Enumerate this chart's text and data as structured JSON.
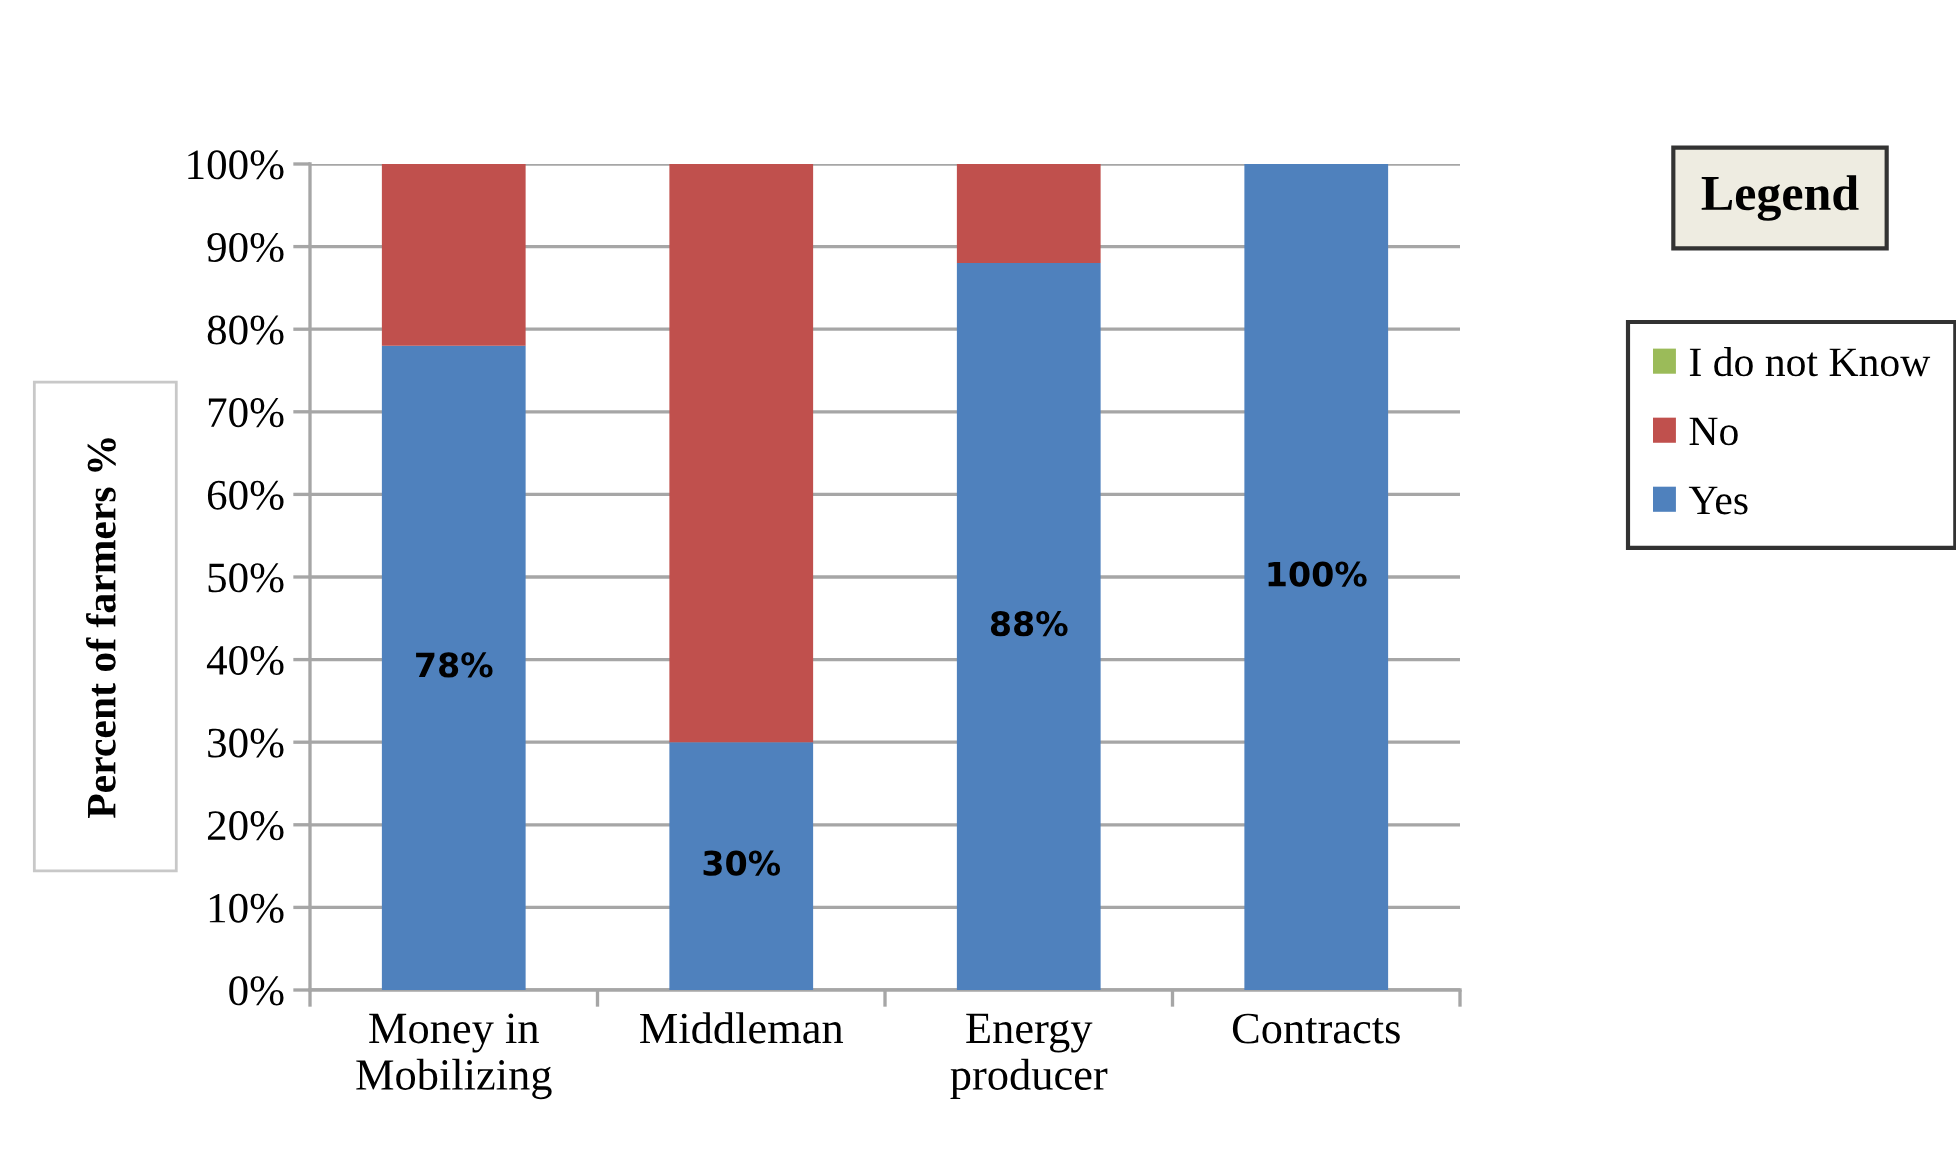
{
  "chart_data": {
    "type": "bar",
    "stacked": true,
    "categories": [
      "Money in\nMobilizing",
      "Middleman",
      "Energy\nproducer",
      "Contracts"
    ],
    "series": [
      {
        "name": "Yes",
        "color": "#4f81bd",
        "values": [
          78,
          30,
          88,
          100
        ],
        "value_labels": [
          "78%",
          "30%",
          "88%",
          "100%"
        ]
      },
      {
        "name": "No",
        "color": "#c0504d",
        "values": [
          22,
          70,
          12,
          0
        ]
      },
      {
        "name": "I do not Know",
        "color": "#9bbb59",
        "values": [
          0,
          0,
          0,
          0
        ]
      }
    ],
    "ylabel": "Percent of farmers %",
    "legend_title": "Legend",
    "legend": "right",
    "grid": "y",
    "ylim": [
      0,
      100
    ],
    "yticks": [
      {
        "value": 0,
        "label": "0%"
      },
      {
        "value": 10,
        "label": "10%"
      },
      {
        "value": 20,
        "label": "20%"
      },
      {
        "value": 30,
        "label": "30%"
      },
      {
        "value": 40,
        "label": "40%"
      },
      {
        "value": 50,
        "label": "50%"
      },
      {
        "value": 60,
        "label": "60%"
      },
      {
        "value": 70,
        "label": "70%"
      },
      {
        "value": 80,
        "label": "80%"
      },
      {
        "value": 90,
        "label": "90%"
      },
      {
        "value": 100,
        "label": "100%"
      }
    ]
  }
}
